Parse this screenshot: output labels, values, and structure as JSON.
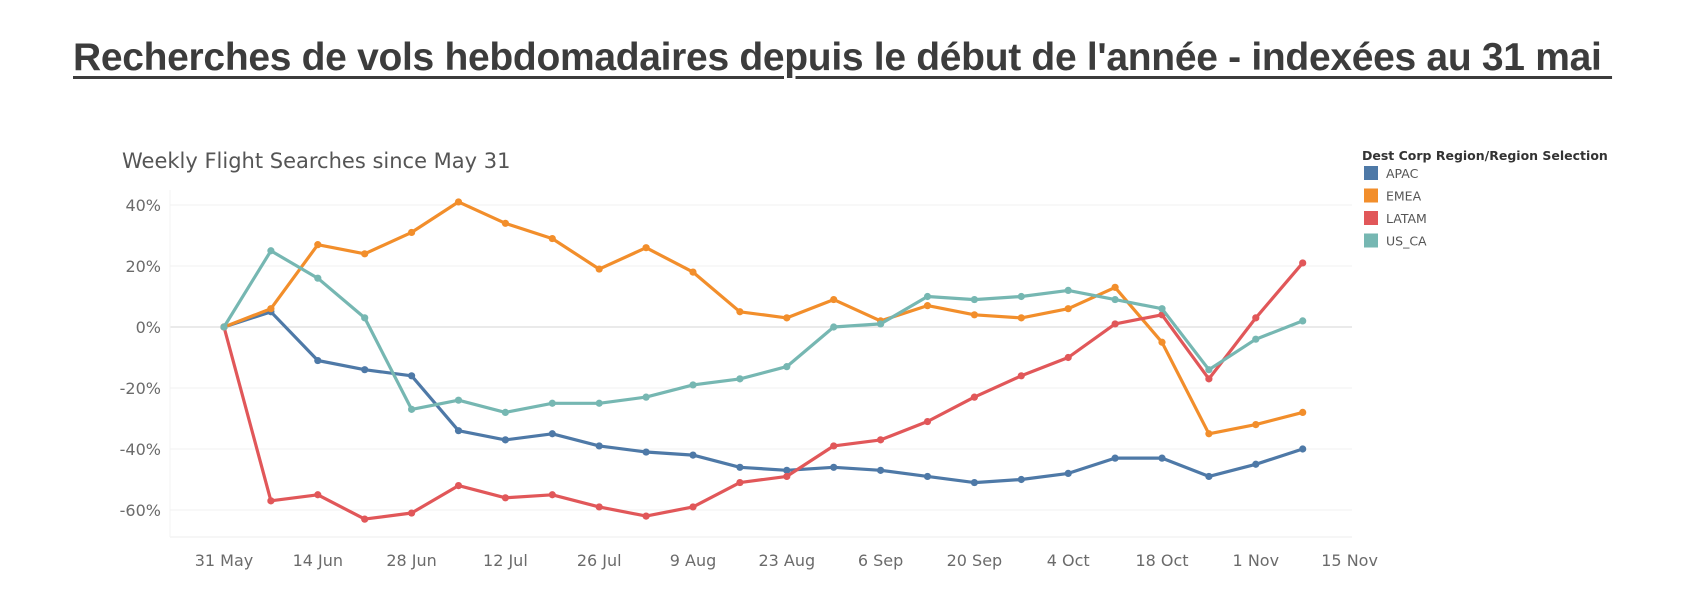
{
  "page": {
    "title": "Recherches de vols hebdomadaires depuis le début de l'année - indexées au 31 mai "
  },
  "chart_data": {
    "type": "line",
    "title": "Weekly Flight Searches since May 31",
    "xlabel": "",
    "ylabel": "",
    "x_ticks": [
      "31 May",
      "14 Jun",
      "28 Jun",
      "12 Jul",
      "26 Jul",
      "9 Aug",
      "23 Aug",
      "6 Sep",
      "20 Sep",
      "4 Oct",
      "18 Oct",
      "1 Nov",
      "15 Nov"
    ],
    "x": [
      "31 May",
      "7 Jun",
      "14 Jun",
      "21 Jun",
      "28 Jun",
      "5 Jul",
      "12 Jul",
      "19 Jul",
      "26 Jul",
      "2 Aug",
      "9 Aug",
      "16 Aug",
      "23 Aug",
      "30 Aug",
      "6 Sep",
      "13 Sep",
      "20 Sep",
      "27 Sep",
      "4 Oct",
      "11 Oct",
      "18 Oct",
      "25 Oct",
      "1 Nov",
      "8 Nov"
    ],
    "y_ticks": [
      40,
      20,
      0,
      -20,
      -40,
      -60
    ],
    "y_tick_labels": [
      "40%",
      "20%",
      "0%",
      "-20%",
      "-40%",
      "-60%"
    ],
    "ylim": [
      -68,
      45
    ],
    "grid": true,
    "zero_line": true,
    "legend": {
      "title": "Dest Corp Region/Region Selection",
      "placement": "top-right"
    },
    "series": [
      {
        "name": "APAC",
        "color": "#4e79a7",
        "values": [
          0,
          5,
          -11,
          -14,
          -16,
          -34,
          -37,
          -35,
          -39,
          -41,
          -42,
          -46,
          -47,
          -46,
          -47,
          -49,
          -51,
          -50,
          -48,
          -43,
          -43,
          -49,
          -45,
          -40
        ]
      },
      {
        "name": "EMEA",
        "color": "#f28e2b",
        "values": [
          0,
          6,
          27,
          24,
          31,
          41,
          34,
          29,
          19,
          26,
          18,
          5,
          3,
          9,
          2,
          7,
          4,
          3,
          6,
          13,
          -5,
          -35,
          -32,
          -28
        ]
      },
      {
        "name": "LATAM",
        "color": "#e15759",
        "values": [
          0,
          -57,
          -55,
          -63,
          -61,
          -52,
          -56,
          -55,
          -59,
          -62,
          -59,
          -51,
          -49,
          -39,
          -37,
          -31,
          -23,
          -16,
          -10,
          1,
          4,
          -17,
          3,
          21
        ]
      },
      {
        "name": "US_CA",
        "color": "#76b7b2",
        "values": [
          0,
          25,
          16,
          3,
          -27,
          -24,
          -28,
          -25,
          -25,
          -23,
          -19,
          -17,
          -13,
          0,
          1,
          10,
          9,
          10,
          12,
          9,
          6,
          -14,
          -4,
          2
        ]
      }
    ]
  }
}
